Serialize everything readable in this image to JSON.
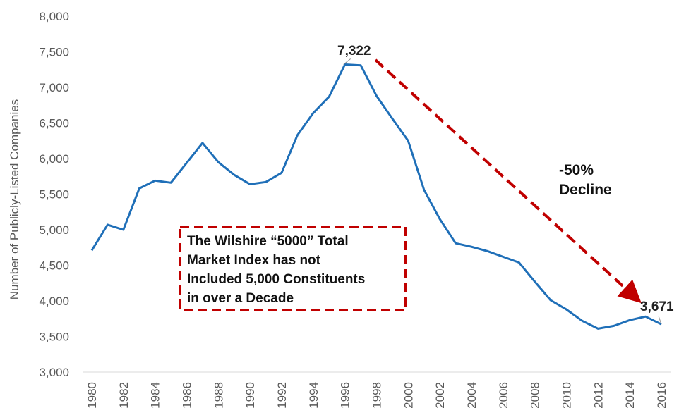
{
  "chart_data": {
    "type": "line",
    "ylabel": "Number of Publicly-Listed Companies",
    "xlabel": "",
    "ylim": [
      3000,
      8000
    ],
    "yticks": [
      3000,
      3500,
      4000,
      4500,
      5000,
      5500,
      6000,
      6500,
      7000,
      7500,
      8000
    ],
    "ytick_labels": [
      "3,000",
      "3,500",
      "4,000",
      "4,500",
      "5,000",
      "5,500",
      "6,000",
      "6,500",
      "7,000",
      "7,500",
      "8,000"
    ],
    "xlim": [
      1980,
      2016
    ],
    "xticks": [
      1980,
      1982,
      1984,
      1986,
      1988,
      1990,
      1992,
      1994,
      1996,
      1998,
      2000,
      2002,
      2004,
      2006,
      2008,
      2010,
      2012,
      2014,
      2016
    ],
    "grid": false,
    "series": [
      {
        "color": "#1f6fb8",
        "x": [
          1980,
          1981,
          1982,
          1983,
          1984,
          1985,
          1986,
          1987,
          1988,
          1989,
          1990,
          1991,
          1992,
          1993,
          1994,
          1995,
          1996,
          1997,
          1998,
          1999,
          2000,
          2001,
          2002,
          2003,
          2004,
          2005,
          2006,
          2007,
          2008,
          2009,
          2010,
          2011,
          2012,
          2013,
          2014,
          2015,
          2016
        ],
        "y": [
          4710,
          5070,
          5000,
          5580,
          5690,
          5660,
          5940,
          6220,
          5950,
          5770,
          5640,
          5670,
          5800,
          6330,
          6640,
          6870,
          7322,
          7310,
          6880,
          6560,
          6250,
          5560,
          5150,
          4810,
          4760,
          4700,
          4620,
          4540,
          4270,
          4010,
          3880,
          3720,
          3610,
          3650,
          3730,
          3780,
          3671
        ]
      }
    ],
    "annotations": {
      "peak_label": "7,322",
      "end_label": "3,671",
      "decline_line1": "-50%",
      "decline_line2": "Decline",
      "decline_color": "#c00000"
    },
    "callout": {
      "lines": [
        "The Wilshire “5000” Total",
        "Market Index has not",
        "Included 5,000 Constituents",
        "in over a Decade"
      ],
      "border_color": "#c00000"
    }
  }
}
